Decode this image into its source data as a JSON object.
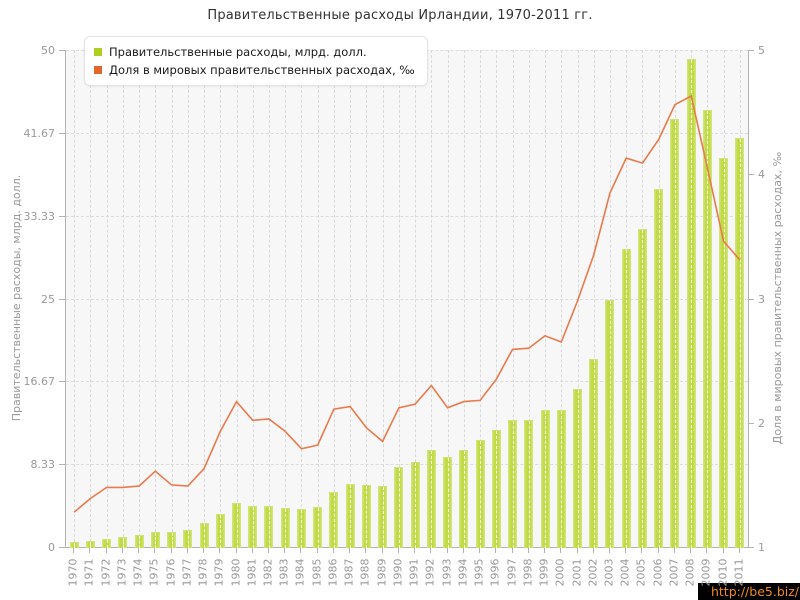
{
  "title": "Правительственные расходы Ирландии, 1970-2011 гг.",
  "legend": {
    "items": [
      {
        "label": "Правительственные расходы, млрд. долл.",
        "swatch_color": "#aFcF20"
      },
      {
        "label": "Доля в мировых правительственных расходах, ‰",
        "swatch_color": "#e0662a"
      }
    ]
  },
  "watermark": {
    "text": "http://be5.biz/",
    "text_color": "#f08a18",
    "bg_color": "#000000"
  },
  "colors": {
    "bar_fill": "#c0da48",
    "bar_edge_highlight": "#d4e87e",
    "line": "#e87a4e",
    "grid": "#dcdcdc",
    "axis": "#b3b3b3",
    "tick_label": "#999999",
    "plot_bg": "#f7f7f7"
  },
  "chart_data": {
    "type": "bar",
    "title": "Правительственные расходы Ирландии, 1970-2011 гг.",
    "categories": [
      "1970",
      "1971",
      "1972",
      "1973",
      "1974",
      "1975",
      "1976",
      "1977",
      "1978",
      "1979",
      "1980",
      "1981",
      "1982",
      "1983",
      "1984",
      "1985",
      "1986",
      "1987",
      "1988",
      "1989",
      "1990",
      "1991",
      "1992",
      "1993",
      "1994",
      "1995",
      "1996",
      "1997",
      "1998",
      "1999",
      "2000",
      "2001",
      "2002",
      "2003",
      "2004",
      "2005",
      "2006",
      "2007",
      "2008",
      "2009",
      "2010",
      "2011"
    ],
    "series": [
      {
        "name": "Правительственные расходы, млрд. долл.",
        "type": "bar",
        "axis": "left",
        "values": [
          0.47,
          0.58,
          0.77,
          0.97,
          1.2,
          1.55,
          1.55,
          1.75,
          2.4,
          3.3,
          4.4,
          4.1,
          4.15,
          3.95,
          3.8,
          4.0,
          5.5,
          6.3,
          6.25,
          6.1,
          8.0,
          8.6,
          9.8,
          9.1,
          9.8,
          10.8,
          11.8,
          12.8,
          12.8,
          13.8,
          13.8,
          15.9,
          18.9,
          24.8,
          30.0,
          32.0,
          36.0,
          43.1,
          49.1,
          44.0,
          39.1,
          41.1
        ]
      },
      {
        "name": "Доля в мировых правительственных расходах, ‰",
        "type": "line",
        "axis": "right",
        "values": [
          1.28,
          1.39,
          1.48,
          1.48,
          1.49,
          1.61,
          1.5,
          1.49,
          1.63,
          1.93,
          2.17,
          2.02,
          2.03,
          1.93,
          1.79,
          1.82,
          2.11,
          2.13,
          1.96,
          1.85,
          2.12,
          2.15,
          2.3,
          2.12,
          2.17,
          2.18,
          2.35,
          2.59,
          2.6,
          2.7,
          2.65,
          2.98,
          3.35,
          3.85,
          4.13,
          4.09,
          4.28,
          4.56,
          4.63,
          4.05,
          3.46,
          3.31
        ]
      }
    ],
    "left_axis": {
      "label": "Правительственные расходы, млрд. долл.",
      "min": 0,
      "max": 50,
      "tick_labels": [
        "0",
        "8.33",
        "16.67",
        "25",
        "33.33",
        "41.67",
        "50"
      ]
    },
    "right_axis": {
      "label": "Доля в мировых правительственных расходах, ‰",
      "min": 1,
      "max": 5,
      "tick_labels": [
        "1",
        "2",
        "3",
        "4",
        "5"
      ]
    },
    "grid": true,
    "legend_position": "top-left"
  }
}
